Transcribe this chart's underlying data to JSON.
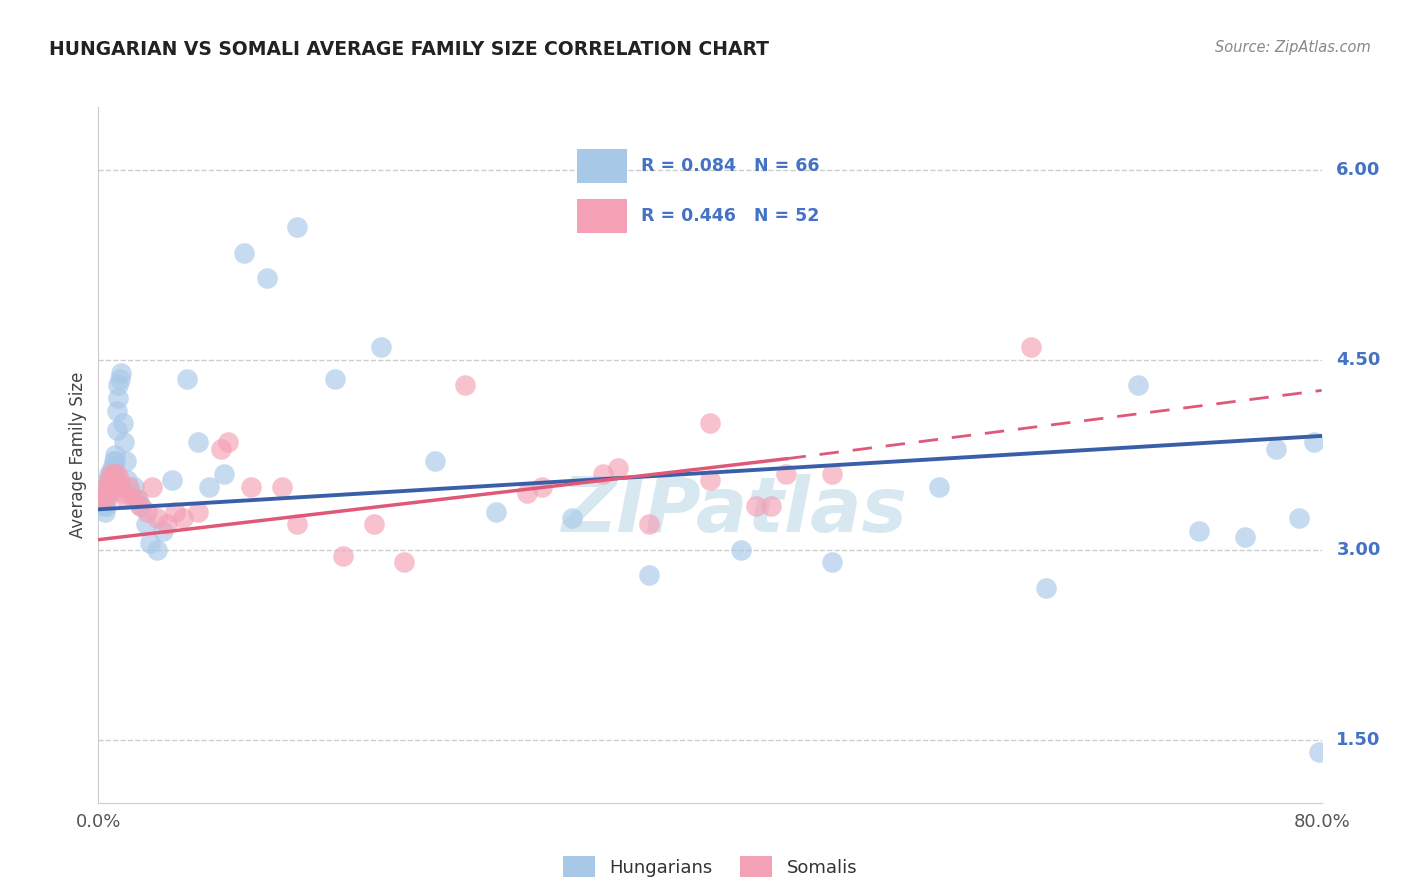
{
  "title": "HUNGARIAN VS SOMALI AVERAGE FAMILY SIZE CORRELATION CHART",
  "source": "Source: ZipAtlas.com",
  "ylabel": "Average Family Size",
  "yticks": [
    1.5,
    3.0,
    4.5,
    6.0
  ],
  "xmin": 0.0,
  "xmax": 0.8,
  "ymin": 1.0,
  "ymax": 6.5,
  "hungarian_color": "#a8c8e8",
  "somali_color": "#f4a0b5",
  "hungarian_line_color": "#3a5fa8",
  "somali_line_color": "#e05878",
  "tick_color": "#4472c4",
  "hungarian_N": 66,
  "somali_N": 52,
  "hun_line_x0": 0.0,
  "hun_line_y0": 3.32,
  "hun_line_x1": 0.8,
  "hun_line_y1": 3.9,
  "som_line_x0": 0.0,
  "som_line_y0": 3.08,
  "som_line_x1_solid": 0.45,
  "som_line_y1_solid": 3.72,
  "som_line_x1_dash": 0.8,
  "som_line_y1_dash": 4.26,
  "watermark_text": "ZIPatlas",
  "background_color": "#ffffff",
  "grid_color": "#c8c8c8",
  "title_color": "#222222",
  "hun_scatter_x": [
    0.003,
    0.004,
    0.004,
    0.005,
    0.005,
    0.005,
    0.006,
    0.006,
    0.006,
    0.007,
    0.007,
    0.007,
    0.007,
    0.008,
    0.008,
    0.008,
    0.009,
    0.009,
    0.01,
    0.01,
    0.01,
    0.011,
    0.011,
    0.012,
    0.012,
    0.013,
    0.013,
    0.014,
    0.015,
    0.016,
    0.017,
    0.018,
    0.019,
    0.021,
    0.023,
    0.026,
    0.028,
    0.031,
    0.034,
    0.038,
    0.042,
    0.048,
    0.058,
    0.065,
    0.072,
    0.082,
    0.095,
    0.11,
    0.13,
    0.155,
    0.185,
    0.22,
    0.26,
    0.31,
    0.36,
    0.42,
    0.48,
    0.55,
    0.62,
    0.68,
    0.72,
    0.75,
    0.77,
    0.785,
    0.795,
    0.798
  ],
  "hun_scatter_y": [
    3.35,
    3.4,
    3.3,
    3.5,
    3.4,
    3.35,
    3.55,
    3.5,
    3.45,
    3.6,
    3.55,
    3.5,
    3.45,
    3.6,
    3.55,
    3.5,
    3.65,
    3.6,
    3.7,
    3.65,
    3.6,
    3.75,
    3.7,
    4.1,
    3.95,
    4.3,
    4.2,
    4.35,
    4.4,
    4.0,
    3.85,
    3.7,
    3.55,
    3.45,
    3.5,
    3.4,
    3.35,
    3.2,
    3.05,
    3.0,
    3.15,
    3.55,
    4.35,
    3.85,
    3.5,
    3.6,
    5.35,
    5.15,
    5.55,
    4.35,
    4.6,
    3.7,
    3.3,
    3.25,
    2.8,
    3.0,
    2.9,
    3.5,
    2.7,
    4.3,
    3.15,
    3.1,
    3.8,
    3.25,
    3.85,
    1.4
  ],
  "som_scatter_x": [
    0.003,
    0.004,
    0.005,
    0.005,
    0.006,
    0.007,
    0.007,
    0.008,
    0.008,
    0.009,
    0.009,
    0.01,
    0.01,
    0.011,
    0.012,
    0.013,
    0.014,
    0.015,
    0.016,
    0.018,
    0.02,
    0.023,
    0.027,
    0.032,
    0.038,
    0.045,
    0.055,
    0.065,
    0.08,
    0.1,
    0.13,
    0.16,
    0.2,
    0.24,
    0.29,
    0.34,
    0.4,
    0.44,
    0.48
  ],
  "som_scatter_y": [
    3.4,
    3.45,
    3.5,
    3.4,
    3.45,
    3.55,
    3.5,
    3.6,
    3.5,
    3.55,
    3.5,
    3.6,
    3.5,
    3.55,
    3.6,
    3.5,
    3.55,
    3.5,
    3.45,
    3.4,
    3.5,
    3.4,
    3.35,
    3.3,
    3.25,
    3.2,
    3.25,
    3.3,
    3.8,
    3.5,
    3.2,
    2.95,
    2.9,
    4.3,
    3.5,
    3.65,
    4.0,
    3.35,
    3.6
  ],
  "som_scatter_x2": [
    0.025,
    0.035,
    0.05,
    0.085,
    0.12,
    0.18,
    0.28,
    0.33,
    0.36,
    0.4,
    0.43,
    0.45,
    0.61
  ],
  "som_scatter_y2": [
    3.4,
    3.5,
    3.3,
    3.85,
    3.5,
    3.2,
    3.45,
    3.6,
    3.2,
    3.55,
    3.35,
    3.6,
    4.6
  ]
}
